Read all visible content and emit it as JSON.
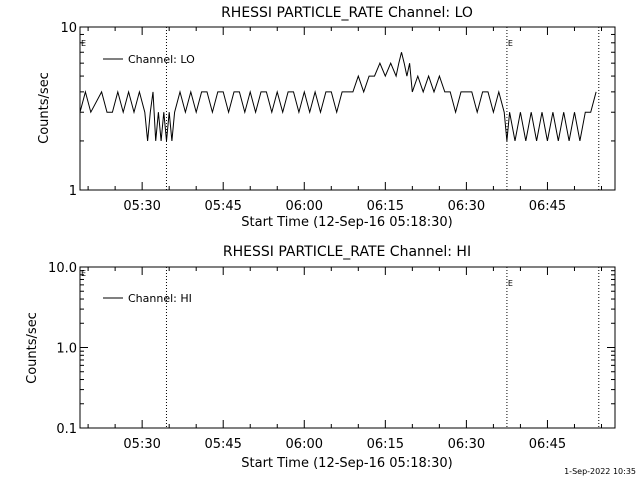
{
  "chart_data": [
    {
      "type": "line",
      "title": "RHESSI PARTICLE_RATE Channel: LO",
      "xlabel": "Start Time (12-Sep-16 05:18:30)",
      "ylabel": "Counts/sec",
      "y_scale": "log",
      "ylim": [
        1,
        10
      ],
      "y_ticks": [
        "1",
        "10"
      ],
      "x_range": [
        "05:18:30",
        "06:57:30"
      ],
      "x_ticks": [
        "05:30",
        "05:45",
        "06:00",
        "06:15",
        "06:30",
        "06:45"
      ],
      "legend": "top-left",
      "markers": [
        {
          "time": "05:34:30",
          "label": ""
        },
        {
          "time": "06:37:30",
          "label": "E"
        },
        {
          "time": "06:54:30",
          "label": ""
        }
      ],
      "start_marker_label": "E",
      "series": [
        {
          "name": "Channel: LO",
          "color": "#000000",
          "points": [
            [
              "05:18:30",
              3
            ],
            [
              "05:19:30",
              4
            ],
            [
              "05:20:30",
              3
            ],
            [
              "05:22:30",
              4
            ],
            [
              "05:23:30",
              3
            ],
            [
              "05:24:30",
              3
            ],
            [
              "05:25:30",
              4
            ],
            [
              "05:26:30",
              3
            ],
            [
              "05:27:30",
              4
            ],
            [
              "05:28:30",
              3
            ],
            [
              "05:29:30",
              4
            ],
            [
              "05:30:30",
              3
            ],
            [
              "05:31:00",
              2
            ],
            [
              "05:31:30",
              3
            ],
            [
              "05:32:00",
              4
            ],
            [
              "05:32:30",
              2
            ],
            [
              "05:33:00",
              3
            ],
            [
              "05:33:30",
              2
            ],
            [
              "05:34:00",
              3
            ],
            [
              "05:34:30",
              2
            ],
            [
              "05:35:00",
              3
            ],
            [
              "05:35:30",
              2
            ],
            [
              "05:36:00",
              3
            ],
            [
              "05:37:00",
              4
            ],
            [
              "05:38:00",
              3
            ],
            [
              "05:39:00",
              4
            ],
            [
              "05:40:00",
              3
            ],
            [
              "05:41:00",
              4
            ],
            [
              "05:42:00",
              4
            ],
            [
              "05:43:00",
              3
            ],
            [
              "05:44:00",
              4
            ],
            [
              "05:45:00",
              4
            ],
            [
              "05:46:00",
              3
            ],
            [
              "05:47:00",
              4
            ],
            [
              "05:48:00",
              4
            ],
            [
              "05:49:00",
              3
            ],
            [
              "05:50:00",
              4
            ],
            [
              "05:51:00",
              3
            ],
            [
              "05:52:00",
              4
            ],
            [
              "05:53:00",
              4
            ],
            [
              "05:54:00",
              3
            ],
            [
              "05:55:00",
              4
            ],
            [
              "05:56:00",
              3
            ],
            [
              "05:57:00",
              4
            ],
            [
              "05:58:00",
              4
            ],
            [
              "05:59:00",
              3
            ],
            [
              "06:00:00",
              4
            ],
            [
              "06:01:00",
              3
            ],
            [
              "06:02:00",
              4
            ],
            [
              "06:03:00",
              3
            ],
            [
              "06:04:00",
              4
            ],
            [
              "06:05:00",
              4
            ],
            [
              "06:06:00",
              3
            ],
            [
              "06:07:00",
              4
            ],
            [
              "06:08:00",
              4
            ],
            [
              "06:09:00",
              4
            ],
            [
              "06:10:00",
              5
            ],
            [
              "06:11:00",
              4
            ],
            [
              "06:12:00",
              5
            ],
            [
              "06:13:00",
              5
            ],
            [
              "06:14:00",
              6
            ],
            [
              "06:15:00",
              5
            ],
            [
              "06:16:00",
              6
            ],
            [
              "06:17:00",
              5
            ],
            [
              "06:17:30",
              6
            ],
            [
              "06:18:00",
              7
            ],
            [
              "06:18:30",
              6
            ],
            [
              "06:19:00",
              5
            ],
            [
              "06:19:30",
              6
            ],
            [
              "06:20:00",
              4
            ],
            [
              "06:21:00",
              5
            ],
            [
              "06:22:00",
              4
            ],
            [
              "06:23:00",
              5
            ],
            [
              "06:24:00",
              4
            ],
            [
              "06:25:00",
              5
            ],
            [
              "06:26:00",
              4
            ],
            [
              "06:27:00",
              4
            ],
            [
              "06:28:00",
              3
            ],
            [
              "06:29:00",
              4
            ],
            [
              "06:30:00",
              4
            ],
            [
              "06:31:00",
              4
            ],
            [
              "06:32:00",
              3
            ],
            [
              "06:33:00",
              4
            ],
            [
              "06:34:00",
              4
            ],
            [
              "06:35:00",
              3
            ],
            [
              "06:36:00",
              4
            ],
            [
              "06:37:00",
              3
            ],
            [
              "06:37:30",
              2
            ],
            [
              "06:38:00",
              3
            ],
            [
              "06:39:00",
              2
            ],
            [
              "06:40:00",
              3
            ],
            [
              "06:41:00",
              2
            ],
            [
              "06:42:00",
              3
            ],
            [
              "06:43:00",
              2
            ],
            [
              "06:44:00",
              3
            ],
            [
              "06:45:00",
              2
            ],
            [
              "06:46:00",
              3
            ],
            [
              "06:47:00",
              2
            ],
            [
              "06:48:00",
              3
            ],
            [
              "06:49:00",
              2
            ],
            [
              "06:50:00",
              3
            ],
            [
              "06:51:00",
              2
            ],
            [
              "06:52:00",
              3
            ],
            [
              "06:53:00",
              3
            ],
            [
              "06:54:00",
              4
            ]
          ]
        }
      ]
    },
    {
      "type": "line",
      "title": "RHESSI PARTICLE_RATE Channel: HI",
      "xlabel": "Start Time (12-Sep-16 05:18:30)",
      "ylabel": "Counts/sec",
      "y_scale": "log",
      "ylim": [
        0.1,
        10
      ],
      "y_ticks": [
        "0.1",
        "1.0",
        "10.0"
      ],
      "x_range": [
        "05:18:30",
        "06:57:30"
      ],
      "x_ticks": [
        "05:30",
        "05:45",
        "06:00",
        "06:15",
        "06:30",
        "06:45"
      ],
      "legend": "top-left",
      "markers": [
        {
          "time": "05:34:30",
          "label": ""
        },
        {
          "time": "06:37:30",
          "label": "E"
        },
        {
          "time": "06:54:30",
          "label": ""
        }
      ],
      "start_marker_label": "E",
      "series": [
        {
          "name": "Channel: HI",
          "color": "#000000",
          "points": []
        }
      ]
    }
  ],
  "footer": {
    "timestamp": "1-Sep-2022 10:35"
  }
}
